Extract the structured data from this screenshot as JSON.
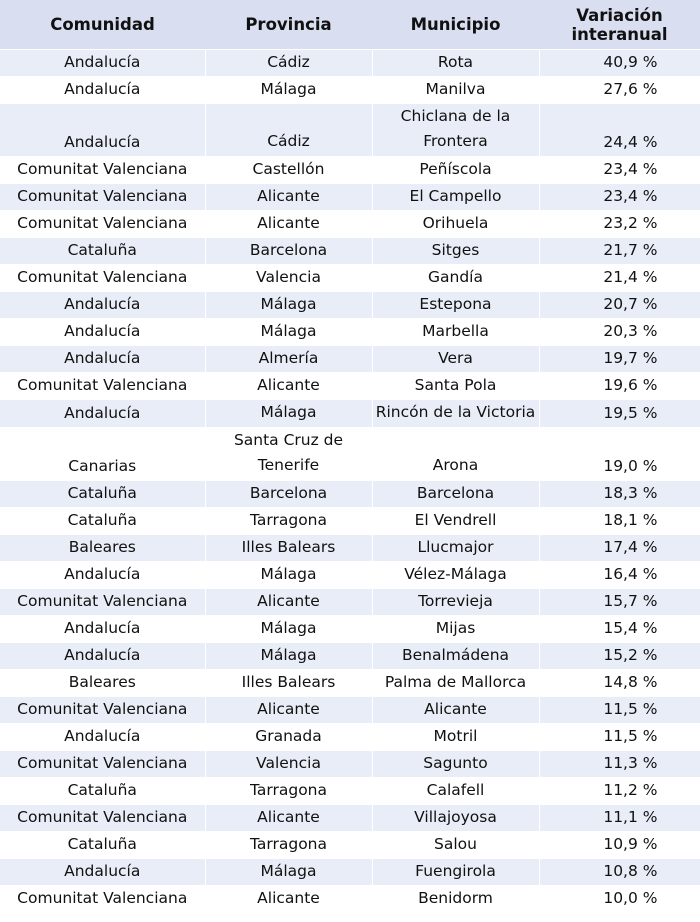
{
  "headers": {
    "comunidad": "Comunidad",
    "provincia": "Provincia",
    "municipio": "Municipio",
    "variacion": "Variación interanual"
  },
  "rows": [
    {
      "comunidad": "Andalucía",
      "provincia": "Cádiz",
      "municipio": "Rota",
      "variacion": "40,9 %"
    },
    {
      "comunidad": "Andalucía",
      "provincia": "Málaga",
      "municipio": "Manilva",
      "variacion": "27,6 %"
    },
    {
      "comunidad": "Andalucía",
      "provincia": "Cádiz",
      "municipio": "Chiclana de la Frontera",
      "variacion": "24,4 %"
    },
    {
      "comunidad": "Comunitat Valenciana",
      "provincia": "Castellón",
      "municipio": "Peñíscola",
      "variacion": "23,4 %"
    },
    {
      "comunidad": "Comunitat Valenciana",
      "provincia": "Alicante",
      "municipio": "El Campello",
      "variacion": "23,4 %"
    },
    {
      "comunidad": "Comunitat Valenciana",
      "provincia": "Alicante",
      "municipio": "Orihuela",
      "variacion": "23,2 %"
    },
    {
      "comunidad": "Cataluña",
      "provincia": "Barcelona",
      "municipio": "Sitges",
      "variacion": "21,7 %"
    },
    {
      "comunidad": "Comunitat Valenciana",
      "provincia": "Valencia",
      "municipio": "Gandía",
      "variacion": "21,4 %"
    },
    {
      "comunidad": "Andalucía",
      "provincia": "Málaga",
      "municipio": "Estepona",
      "variacion": "20,7 %"
    },
    {
      "comunidad": "Andalucía",
      "provincia": "Málaga",
      "municipio": "Marbella",
      "variacion": "20,3 %"
    },
    {
      "comunidad": "Andalucía",
      "provincia": "Almería",
      "municipio": "Vera",
      "variacion": "19,7 %"
    },
    {
      "comunidad": "Comunitat Valenciana",
      "provincia": "Alicante",
      "municipio": "Santa Pola",
      "variacion": "19,6 %"
    },
    {
      "comunidad": "Andalucía",
      "provincia": "Málaga",
      "municipio": "Rincón de la Victoria",
      "variacion": "19,5 %"
    },
    {
      "comunidad": "Canarias",
      "provincia": "Santa Cruz de Tenerife",
      "municipio": "Arona",
      "variacion": "19,0 %"
    },
    {
      "comunidad": "Cataluña",
      "provincia": "Barcelona",
      "municipio": "Barcelona",
      "variacion": "18,3 %"
    },
    {
      "comunidad": "Cataluña",
      "provincia": "Tarragona",
      "municipio": "El Vendrell",
      "variacion": "18,1 %"
    },
    {
      "comunidad": "Baleares",
      "provincia": "Illes Balears",
      "municipio": "Llucmajor",
      "variacion": "17,4 %"
    },
    {
      "comunidad": "Andalucía",
      "provincia": "Málaga",
      "municipio": "Vélez-Málaga",
      "variacion": "16,4 %"
    },
    {
      "comunidad": "Comunitat Valenciana",
      "provincia": "Alicante",
      "municipio": "Torrevieja",
      "variacion": "15,7 %"
    },
    {
      "comunidad": "Andalucía",
      "provincia": "Málaga",
      "municipio": "Mijas",
      "variacion": "15,4 %"
    },
    {
      "comunidad": "Andalucía",
      "provincia": "Málaga",
      "municipio": "Benalmádena",
      "variacion": "15,2 %"
    },
    {
      "comunidad": "Baleares",
      "provincia": "Illes Balears",
      "municipio": "Palma de Mallorca",
      "variacion": "14,8 %"
    },
    {
      "comunidad": "Comunitat Valenciana",
      "provincia": "Alicante",
      "municipio": "Alicante",
      "variacion": "11,5 %"
    },
    {
      "comunidad": "Andalucía",
      "provincia": "Granada",
      "municipio": "Motril",
      "variacion": "11,5 %"
    },
    {
      "comunidad": "Comunitat Valenciana",
      "provincia": "Valencia",
      "municipio": "Sagunto",
      "variacion": "11,3 %"
    },
    {
      "comunidad": "Cataluña",
      "provincia": "Tarragona",
      "municipio": "Calafell",
      "variacion": "11,2 %"
    },
    {
      "comunidad": "Comunitat Valenciana",
      "provincia": "Alicante",
      "municipio": "Villajoyosa",
      "variacion": "11,1 %"
    },
    {
      "comunidad": "Cataluña",
      "provincia": "Tarragona",
      "municipio": "Salou",
      "variacion": "10,9 %"
    },
    {
      "comunidad": "Andalucía",
      "provincia": "Málaga",
      "municipio": "Fuengirola",
      "variacion": "10,8 %"
    },
    {
      "comunidad": "Comunitat Valenciana",
      "provincia": "Alicante",
      "municipio": "Benidorm",
      "variacion": "10,0 %"
    }
  ]
}
